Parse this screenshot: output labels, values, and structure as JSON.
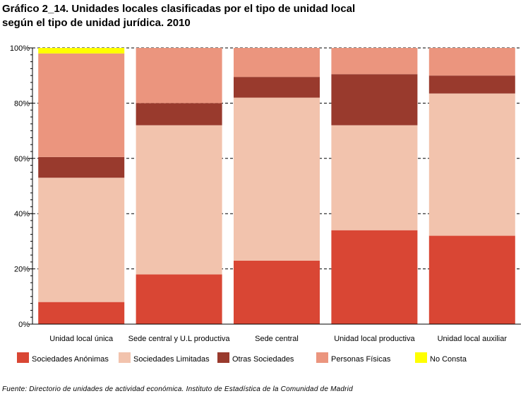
{
  "title": {
    "line1": "Gráfico 2_14. Unidades locales clasificadas por el tipo de unidad local",
    "line2": "según el tipo de unidad jurídica. 2010"
  },
  "source": "Fuente: Directorio de unidades de actividad económica. Instituto de Estadística de la Comunidad de Madrid",
  "chart_data": {
    "type": "bar",
    "stacked": true,
    "percent": true,
    "categories": [
      "Unidad local única",
      "Sede central y U.L productiva",
      "Sede central",
      "Unidad local productiva",
      "Unidad local auxiliar"
    ],
    "series": [
      {
        "name": "Sociedades Anónimas",
        "color": "#d94634",
        "values": [
          8,
          18,
          23,
          34,
          32
        ]
      },
      {
        "name": "Sociedades Limitadas",
        "color": "#f2c3ad",
        "values": [
          45,
          54,
          59,
          38,
          51.5
        ]
      },
      {
        "name": "Otras Sociedades",
        "color": "#993a2d",
        "values": [
          7.5,
          8,
          7.5,
          18.5,
          6.5
        ]
      },
      {
        "name": "Personas Físicas",
        "color": "#eb957e",
        "values": [
          37.5,
          20,
          10.5,
          9.5,
          10
        ]
      },
      {
        "name": "No Consta",
        "color": "#ffff00",
        "values": [
          2,
          0,
          0,
          0,
          0
        ]
      }
    ],
    "ylim": [
      0,
      100
    ],
    "yticks": [
      "0%",
      "20%",
      "40%",
      "60%",
      "80%",
      "100%"
    ],
    "xlabel": "",
    "ylabel": "",
    "grid": true,
    "legend_position": "bottom"
  }
}
